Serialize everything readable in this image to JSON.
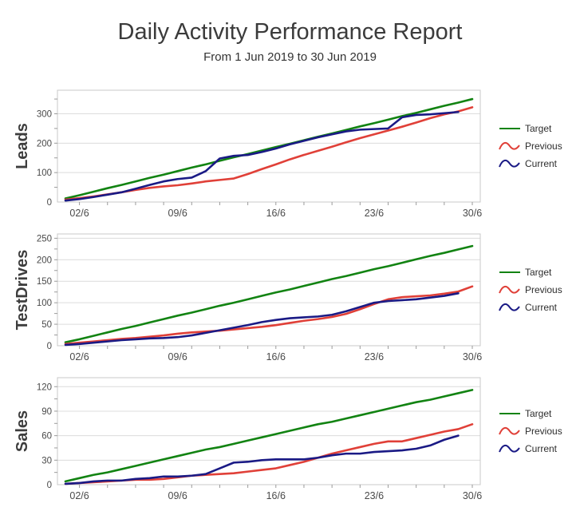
{
  "title": "Daily Activity Performance Report",
  "subtitle": "From 1 Jun 2019 to 30 Jun 2019",
  "colors": {
    "target": "#128312",
    "previous": "#e04038",
    "current": "#1a1a85",
    "grid": "#dcdcdc",
    "plot_border": "#c8c8c8",
    "tick": "#9a9a9a",
    "axis_label": "#4a4a4a"
  },
  "x_axis": {
    "tick_labels": [
      "02/6",
      "09/6",
      "16/6",
      "23/6",
      "30/6"
    ],
    "tick_days": [
      2,
      9,
      16,
      23,
      30
    ],
    "days_total": 30
  },
  "legend": {
    "items": [
      {
        "label": "Target",
        "series_key": "target",
        "icon": "line-icon"
      },
      {
        "label": "Previous",
        "series_key": "previous",
        "icon": "wave-icon"
      },
      {
        "label": "Current",
        "series_key": "current",
        "icon": "wave-icon"
      }
    ]
  },
  "chart_data": [
    {
      "type": "line",
      "name": "Leads",
      "ylabel": "Leads",
      "ylim": [
        0,
        380
      ],
      "y_major_ticks": [
        0,
        100,
        200,
        300
      ],
      "y_minor_step": 50,
      "grid": "horizontal-only",
      "legend_position": "right",
      "x_start_day": 1,
      "series": [
        {
          "name": "Target",
          "color_key": "target",
          "values": [
            12,
            23,
            35,
            47,
            58,
            70,
            82,
            93,
            105,
            117,
            128,
            140,
            152,
            163,
            175,
            187,
            198,
            210,
            222,
            233,
            245,
            257,
            268,
            280,
            292,
            303,
            315,
            327,
            338,
            350
          ]
        },
        {
          "name": "Previous",
          "color_key": "previous",
          "values": [
            8,
            13,
            19,
            26,
            33,
            41,
            48,
            53,
            57,
            63,
            70,
            75,
            80,
            95,
            112,
            128,
            145,
            160,
            174,
            188,
            203,
            217,
            230,
            243,
            256,
            270,
            285,
            298,
            308,
            322
          ]
        },
        {
          "name": "Current",
          "color_key": "current",
          "values": [
            5,
            10,
            17,
            25,
            33,
            45,
            58,
            70,
            78,
            83,
            105,
            148,
            157,
            160,
            170,
            182,
            196,
            208,
            220,
            230,
            240,
            246,
            248,
            250,
            288,
            296,
            298,
            302,
            306
          ]
        }
      ]
    },
    {
      "type": "line",
      "name": "TestDrives",
      "ylabel": "TestDrives",
      "ylim": [
        0,
        260
      ],
      "y_major_ticks": [
        0,
        50,
        100,
        150,
        200,
        250
      ],
      "y_minor_step": 25,
      "grid": "horizontal-only",
      "legend_position": "right",
      "x_start_day": 1,
      "series": [
        {
          "name": "Target",
          "color_key": "target",
          "values": [
            8,
            15,
            23,
            31,
            39,
            46,
            54,
            62,
            70,
            77,
            85,
            93,
            100,
            108,
            116,
            124,
            131,
            139,
            147,
            155,
            162,
            170,
            178,
            185,
            193,
            201,
            209,
            216,
            224,
            232
          ]
        },
        {
          "name": "Previous",
          "color_key": "previous",
          "values": [
            4,
            7,
            10,
            13,
            16,
            18,
            21,
            24,
            28,
            31,
            33,
            35,
            38,
            41,
            44,
            48,
            53,
            58,
            62,
            67,
            74,
            85,
            97,
            108,
            113,
            115,
            117,
            121,
            126,
            138
          ]
        },
        {
          "name": "Current",
          "color_key": "current",
          "values": [
            2,
            4,
            7,
            10,
            13,
            15,
            17,
            18,
            20,
            24,
            30,
            36,
            42,
            48,
            55,
            60,
            64,
            66,
            68,
            72,
            80,
            90,
            100,
            104,
            106,
            108,
            112,
            116,
            122
          ]
        }
      ]
    },
    {
      "type": "line",
      "name": "Sales",
      "ylabel": "Sales",
      "ylim": [
        0,
        131
      ],
      "y_major_ticks": [
        0,
        30,
        60,
        90,
        120
      ],
      "y_minor_step": 15,
      "grid": "horizontal-only",
      "legend_position": "right",
      "x_start_day": 1,
      "series": [
        {
          "name": "Target",
          "color_key": "target",
          "values": [
            4,
            8,
            12,
            15,
            19,
            23,
            27,
            31,
            35,
            39,
            43,
            46,
            50,
            54,
            58,
            62,
            66,
            70,
            74,
            77,
            81,
            85,
            89,
            93,
            97,
            101,
            104,
            108,
            112,
            116
          ]
        },
        {
          "name": "Previous",
          "color_key": "previous",
          "values": [
            1,
            2,
            3,
            4,
            5,
            6,
            6,
            7,
            9,
            11,
            12,
            13,
            14,
            16,
            18,
            20,
            24,
            28,
            33,
            38,
            42,
            46,
            50,
            53,
            53,
            57,
            61,
            65,
            68,
            74
          ]
        },
        {
          "name": "Current",
          "color_key": "current",
          "values": [
            1,
            2,
            4,
            5,
            5,
            7,
            8,
            10,
            10,
            11,
            13,
            20,
            27,
            28,
            30,
            31,
            31,
            31,
            33,
            36,
            38,
            38,
            40,
            41,
            42,
            44,
            48,
            55,
            60
          ]
        }
      ]
    }
  ]
}
